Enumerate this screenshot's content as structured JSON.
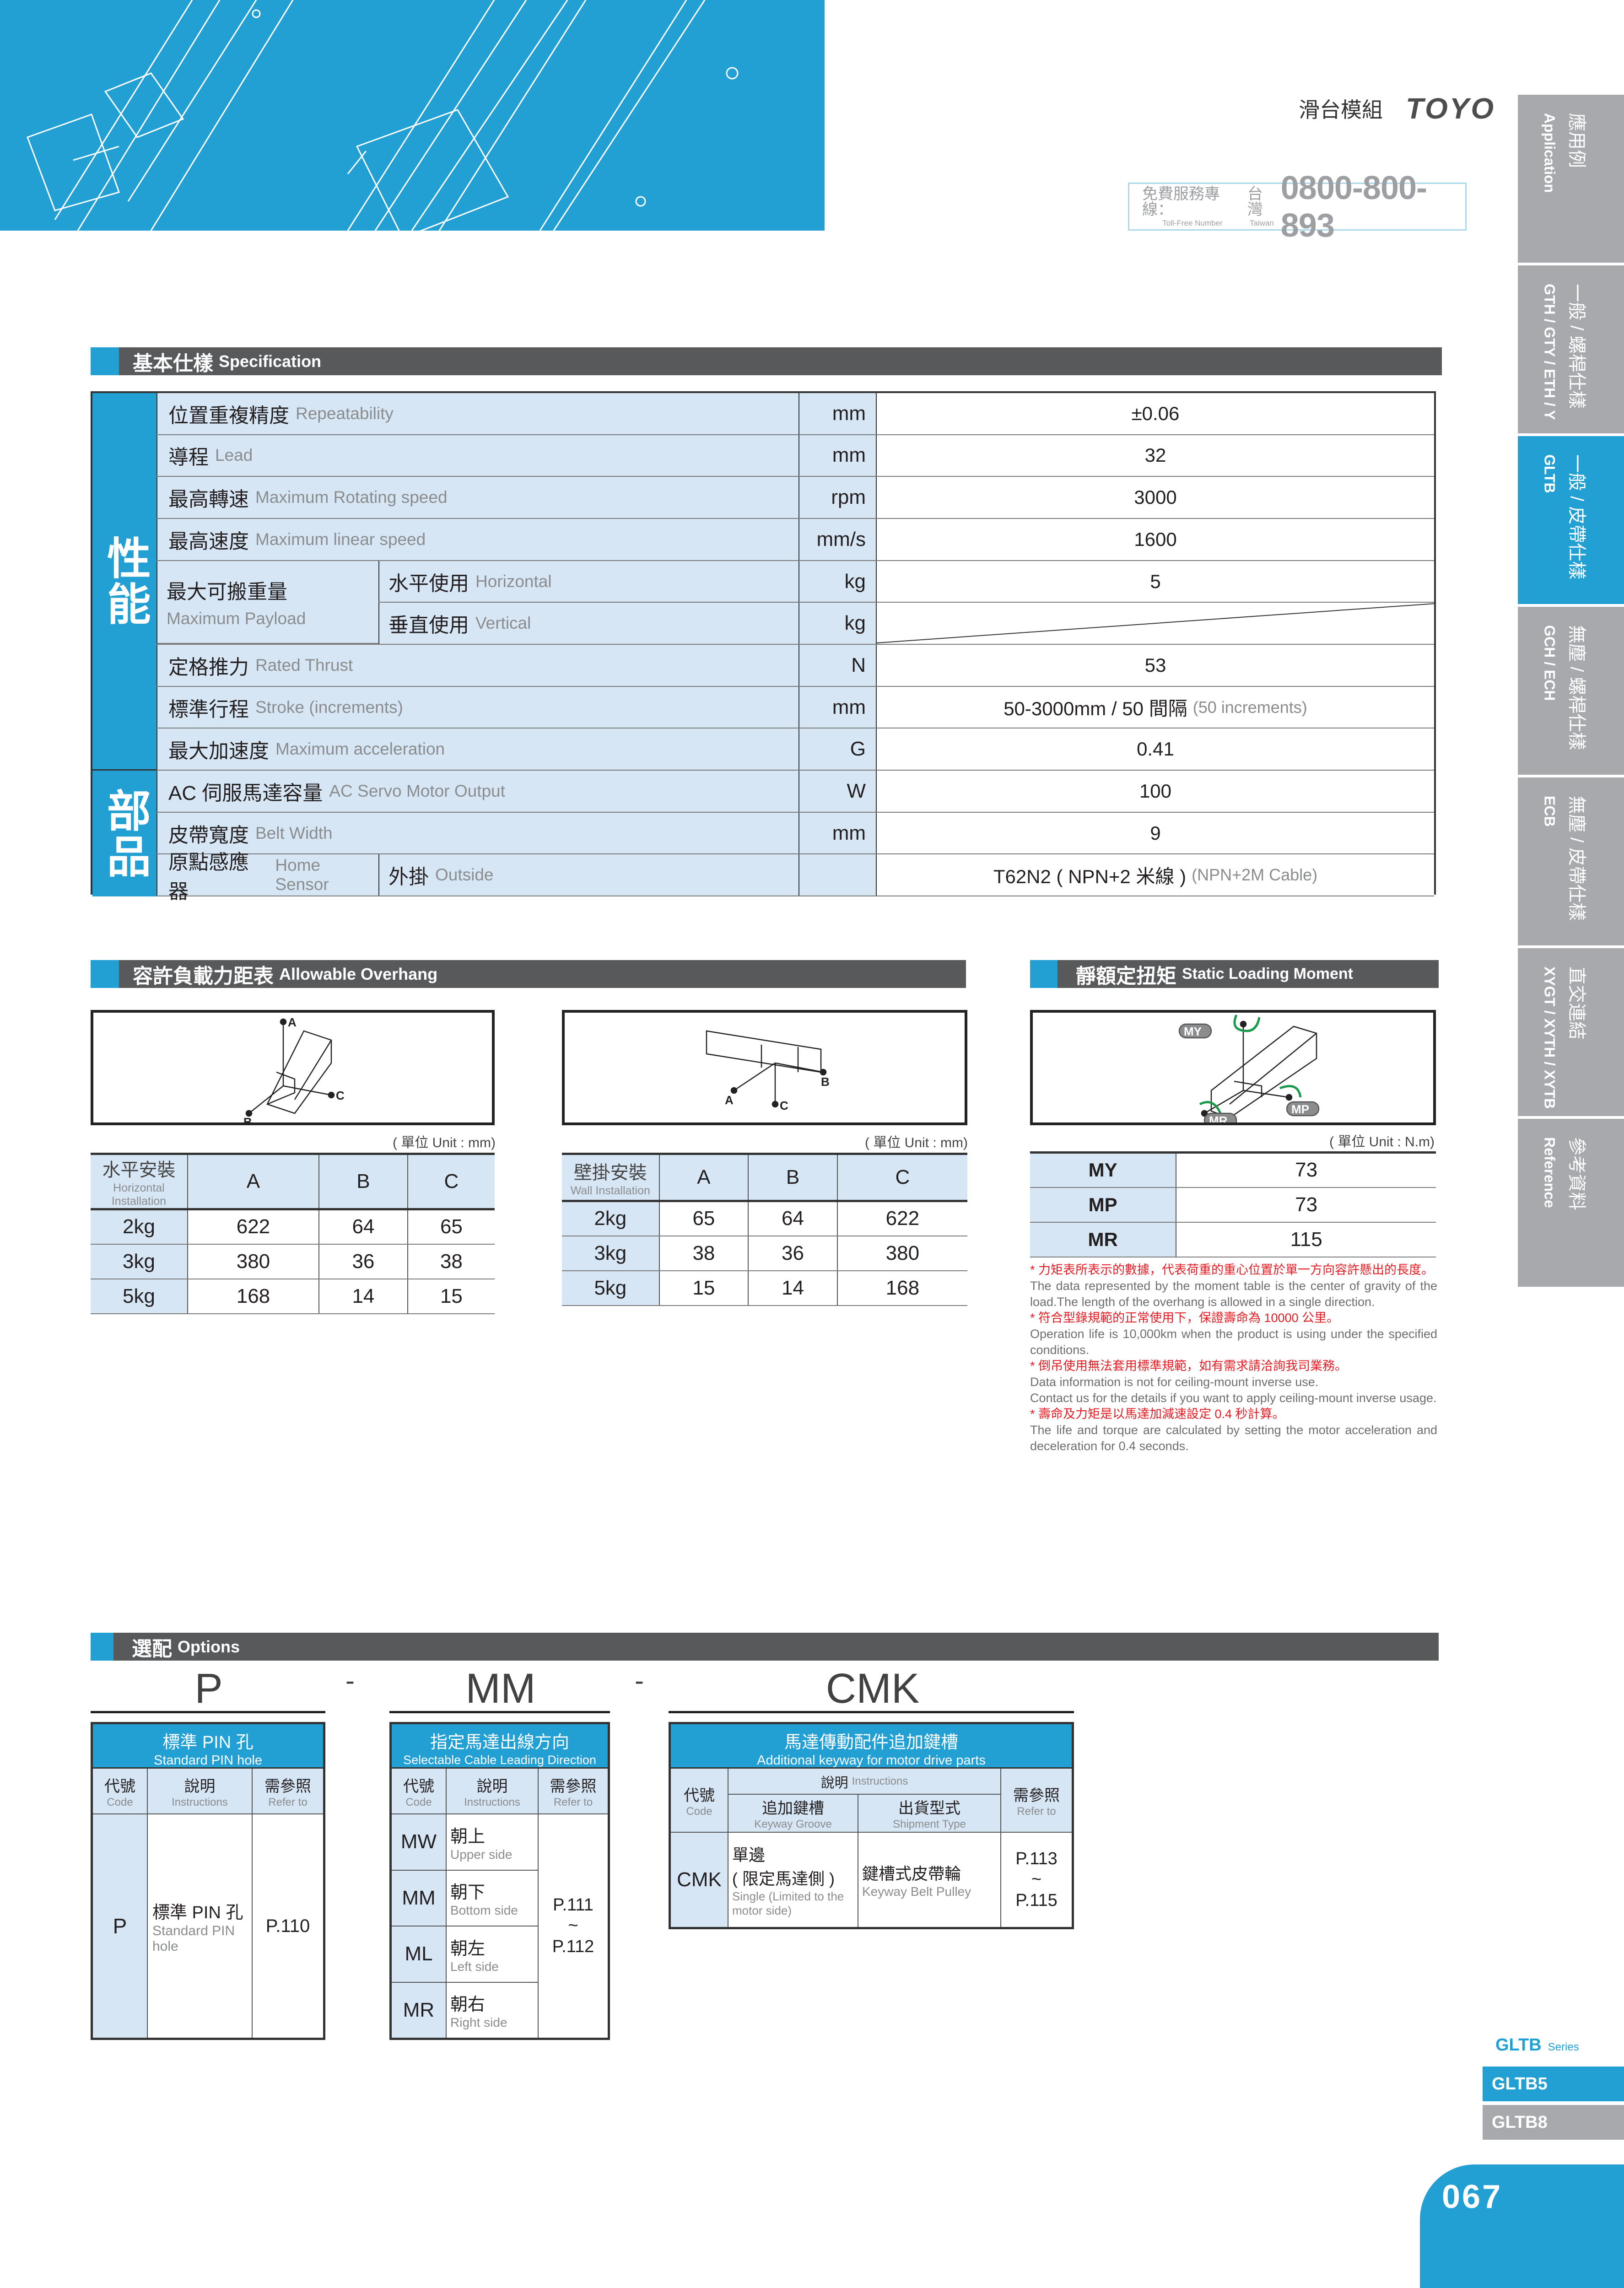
{
  "header": {
    "title": "滑台模組",
    "logo": "TOYO",
    "toll_cn": "免費服務專線：",
    "toll_en": "Toll-Free Number",
    "region_cn": "台灣",
    "region_en": "Taiwan",
    "phone": "0800-800-893"
  },
  "side_tabs": [
    {
      "cn": "應用例",
      "en": "Application",
      "active": false
    },
    {
      "cn": "一般 / 螺桿仕樣",
      "en": "GTH / GTY / ETH / Y",
      "active": false
    },
    {
      "cn": "一般 / 皮帶仕樣",
      "en": "GLTB",
      "active": true
    },
    {
      "cn": "無塵 / 螺桿仕樣",
      "en": "GCH / ECH",
      "active": false
    },
    {
      "cn": "無塵 / 皮帶仕樣",
      "en": "ECB",
      "active": false
    },
    {
      "cn": "直交連結",
      "en": "XYGT / XYTH / XYTB",
      "active": false
    },
    {
      "cn": "參考資料",
      "en": "Reference",
      "active": false
    }
  ],
  "spec": {
    "title_cn": "基本仕樣",
    "title_en": "Specification",
    "groups": [
      "性能",
      "部品"
    ],
    "payload": {
      "cn": "最大可搬重量",
      "en": "Maximum Payload"
    },
    "rows": [
      {
        "cn": "位置重複精度",
        "en": "Repeatability",
        "unit": "mm",
        "value": "±0.06"
      },
      {
        "cn": "導程",
        "en": "Lead",
        "unit": "mm",
        "value": "32"
      },
      {
        "cn": "最高轉速",
        "en": "Maximum Rotating speed",
        "unit": "rpm",
        "value": "3000"
      },
      {
        "cn": "最高速度",
        "en": "Maximum linear speed",
        "unit": "mm/s",
        "value": "1600"
      },
      {
        "sub_cn": "水平使用",
        "sub_en": "Horizontal",
        "unit": "kg",
        "value": "5"
      },
      {
        "sub_cn": "垂直使用",
        "sub_en": "Vertical",
        "unit": "kg",
        "value": ""
      },
      {
        "cn": "定格推力",
        "en": "Rated Thrust",
        "unit": "N",
        "value": "53"
      },
      {
        "cn": "標準行程",
        "en": "Stroke (increments)",
        "unit": "mm",
        "value": "50-3000mm / 50 間隔",
        "value_note": "(50 increments)"
      },
      {
        "cn": "最大加速度",
        "en": "Maximum acceleration",
        "unit": "G",
        "value": "0.41"
      },
      {
        "cn": "AC 伺服馬達容量",
        "en": "AC Servo Motor Output",
        "unit": "W",
        "value": "100"
      },
      {
        "cn": "皮帶寬度",
        "en": "Belt Width",
        "unit": "mm",
        "value": "9"
      },
      {
        "cn": "原點感應器",
        "en": "Home Sensor",
        "sub_cn": "外掛",
        "sub_en": "Outside",
        "unit": "",
        "value": "T62N2 ( NPN+2 米線 )",
        "value_note": "(NPN+2M Cable)"
      }
    ]
  },
  "overhang": {
    "title_cn": "容許負載力距表",
    "title_en": "Allowable Overhang",
    "diagram_labels": [
      "A",
      "B",
      "C"
    ],
    "unit_note": "( 單位 Unit : mm)",
    "columns": [
      "A",
      "B",
      "C"
    ],
    "tables": [
      {
        "cn": "水平安裝",
        "en": "Horizontal Installation",
        "rows": [
          [
            "2kg",
            "622",
            "64",
            "65"
          ],
          [
            "3kg",
            "380",
            "36",
            "38"
          ],
          [
            "5kg",
            "168",
            "14",
            "15"
          ]
        ]
      },
      {
        "cn": "壁掛安裝",
        "en": "Wall Installation",
        "rows": [
          [
            "2kg",
            "65",
            "64",
            "622"
          ],
          [
            "3kg",
            "38",
            "36",
            "380"
          ],
          [
            "5kg",
            "15",
            "14",
            "168"
          ]
        ]
      }
    ]
  },
  "moment": {
    "title_cn": "靜額定扭矩",
    "title_en": "Static Loading Moment",
    "unit_note": "( 單位 Unit : N.m)",
    "rows": [
      [
        "MY",
        "73"
      ],
      [
        "MP",
        "73"
      ],
      [
        "MR",
        "115"
      ]
    ],
    "arrow_color": "#1a9a4a"
  },
  "notes": [
    {
      "text": "* 力矩表所表示的數據，代表荷重的重心位置於單一方向容許懸出的長度。",
      "red": true
    },
    {
      "text": "The data represented by the moment table is the center of gravity of the load.The length of the overhang is allowed in a single direction.",
      "red": false
    },
    {
      "text": "* 符合型錄規範的正常使用下，保證壽命為 10000 公里。",
      "red": true
    },
    {
      "text": "Operation life is 10,000km when the product is using under the specified conditions.",
      "red": false
    },
    {
      "text": "* 倒吊使用無法套用標準規範，如有需求請洽詢我司業務。",
      "red": true
    },
    {
      "text": "Data information is not for ceiling-mount inverse use.",
      "red": false
    },
    {
      "text": "Contact us for the details if you want to apply ceiling-mount inverse usage.",
      "red": false
    },
    {
      "text": "* 壽命及力矩是以馬達加減速設定 0.4 秒計算。",
      "red": true
    },
    {
      "text": "The life and torque are calculated by setting the motor acceleration and deceleration for 0.4 seconds.",
      "red": false
    }
  ],
  "options": {
    "title_cn": "選配",
    "title_en": "Options",
    "codes": [
      "P",
      "MM",
      "CMK"
    ],
    "separator": "-",
    "heads": {
      "code_cn": "代號",
      "code_en": "Code",
      "instr_cn": "說明",
      "instr_en": "Instructions",
      "ref_cn": "需參照",
      "ref_en": "Refer to"
    },
    "pin": {
      "title_cn": "標準 PIN 孔",
      "title_en": "Standard PIN hole",
      "code": "P",
      "desc_cn": "標準 PIN 孔",
      "desc_en": "Standard PIN hole",
      "ref": "P.110"
    },
    "cable": {
      "title_cn": "指定馬達出線方向",
      "title_en": "Selectable Cable Leading Direction",
      "rows": [
        {
          "code": "MW",
          "cn": "朝上",
          "en": "Upper side"
        },
        {
          "code": "MM",
          "cn": "朝下",
          "en": "Bottom side"
        },
        {
          "code": "ML",
          "cn": "朝左",
          "en": "Left side"
        },
        {
          "code": "MR",
          "cn": "朝右",
          "en": "Right side"
        }
      ],
      "ref_from": "P.111",
      "ref_tilde": "~",
      "ref_to": "P.112"
    },
    "keyway": {
      "title_cn": "馬達傳動配件追加鍵槽",
      "title_en": "Additional keyway for motor drive parts",
      "groove_cn": "追加鍵槽",
      "groove_en": "Keyway Groove",
      "ship_cn": "出貨型式",
      "ship_en": "Shipment Type",
      "code": "CMK",
      "g_cn1": "單邊",
      "g_cn2": "( 限定馬達側 )",
      "g_en": "Single (Limited to the motor side)",
      "s_cn": "鍵槽式皮帶輪",
      "s_en": "Keyway Belt Pulley",
      "ref_from": "P.113",
      "ref_tilde": "~",
      "ref_to": "P.115"
    }
  },
  "series": {
    "name": "GLTB",
    "label": "Series",
    "items": [
      {
        "name": "GLTB5",
        "active": true
      },
      {
        "name": "GLTB8",
        "active": false
      }
    ]
  },
  "page_number": "067",
  "colors": {
    "accent": "#23a0d3",
    "section_bar": "#58595b",
    "tab_grey": "#a7a9ac",
    "cell_blue": "#d6e6f4",
    "note_red": "#e51c23"
  }
}
